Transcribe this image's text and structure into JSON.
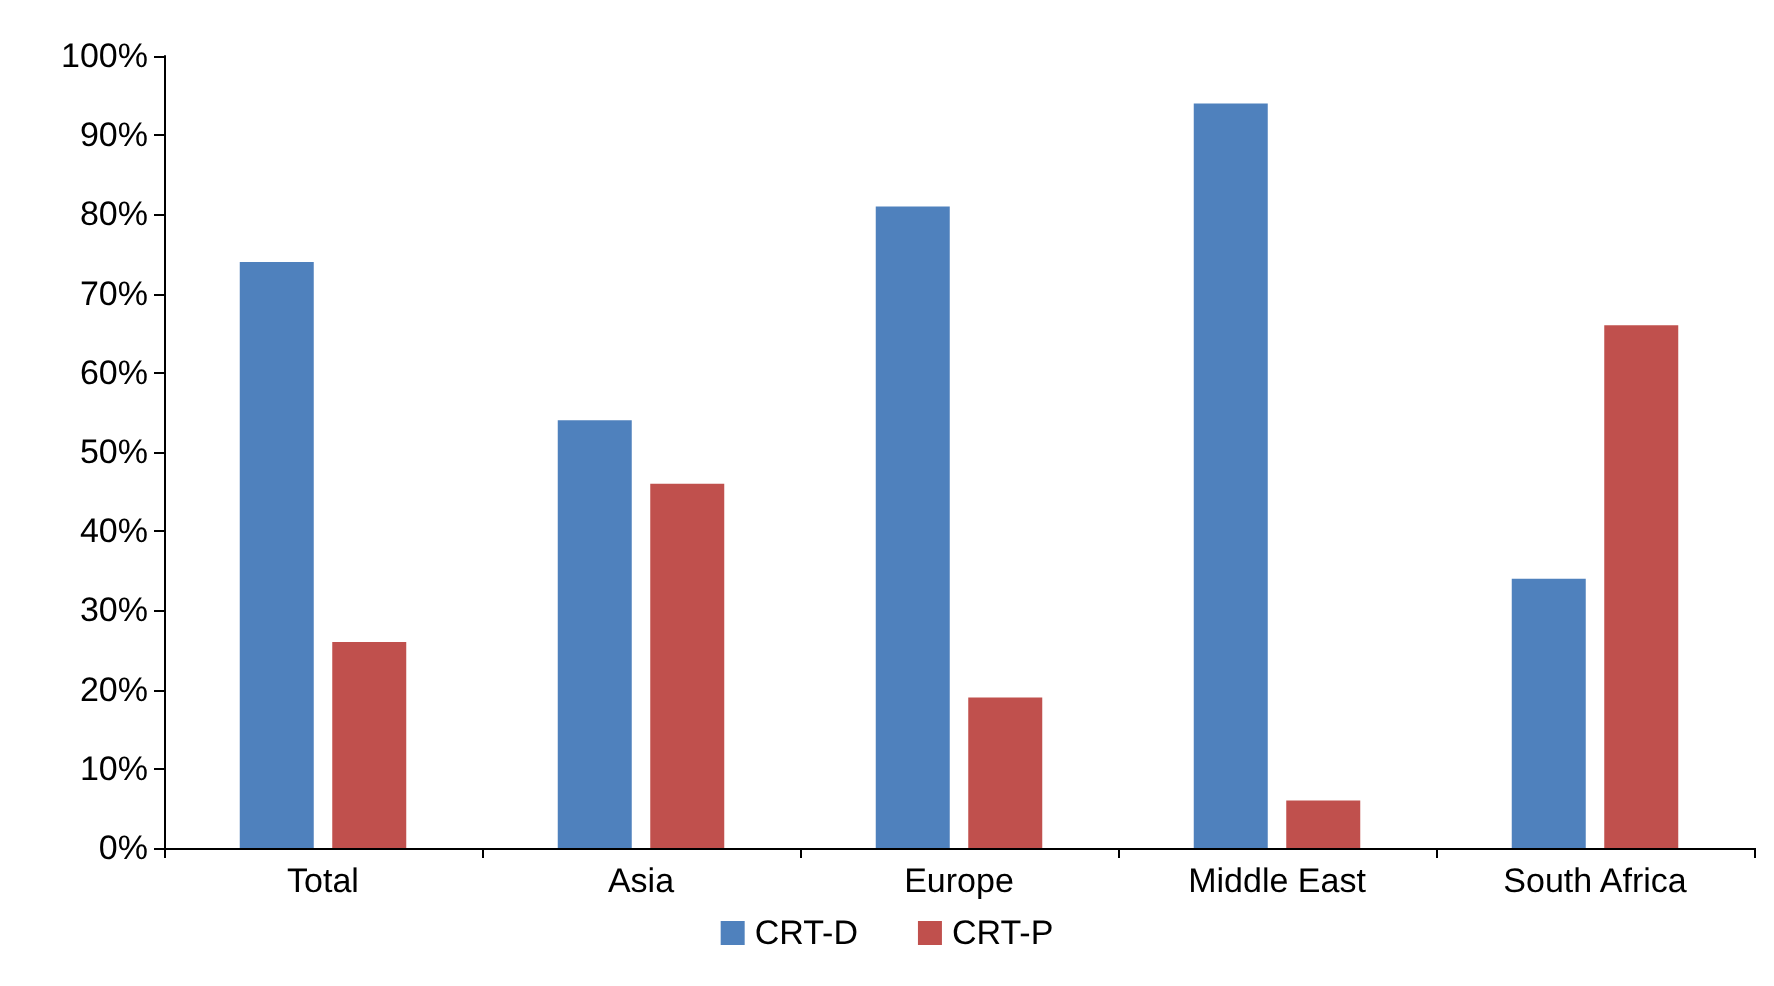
{
  "chart_data": {
    "type": "bar",
    "categories": [
      "Total",
      "Asia",
      "Europe",
      "Middle East",
      "South Africa"
    ],
    "series": [
      {
        "name": "CRT-D",
        "color": "#4f81bd",
        "values": [
          74,
          54,
          81,
          94,
          34
        ]
      },
      {
        "name": "CRT-P",
        "color": "#c0504d",
        "values": [
          26,
          46,
          19,
          6,
          66
        ]
      }
    ],
    "ylim": [
      0,
      100
    ],
    "yticks": [
      {
        "value": 0,
        "label": "0%"
      },
      {
        "value": 10,
        "label": "10%"
      },
      {
        "value": 20,
        "label": "20%"
      },
      {
        "value": 30,
        "label": "30%"
      },
      {
        "value": 40,
        "label": "40%"
      },
      {
        "value": 50,
        "label": "50%"
      },
      {
        "value": 60,
        "label": "60%"
      },
      {
        "value": 70,
        "label": "70%"
      },
      {
        "value": 80,
        "label": "80%"
      },
      {
        "value": 90,
        "label": "90%"
      },
      {
        "value": 100,
        "label": "100%"
      }
    ],
    "grid": false,
    "legend": "bottom"
  }
}
